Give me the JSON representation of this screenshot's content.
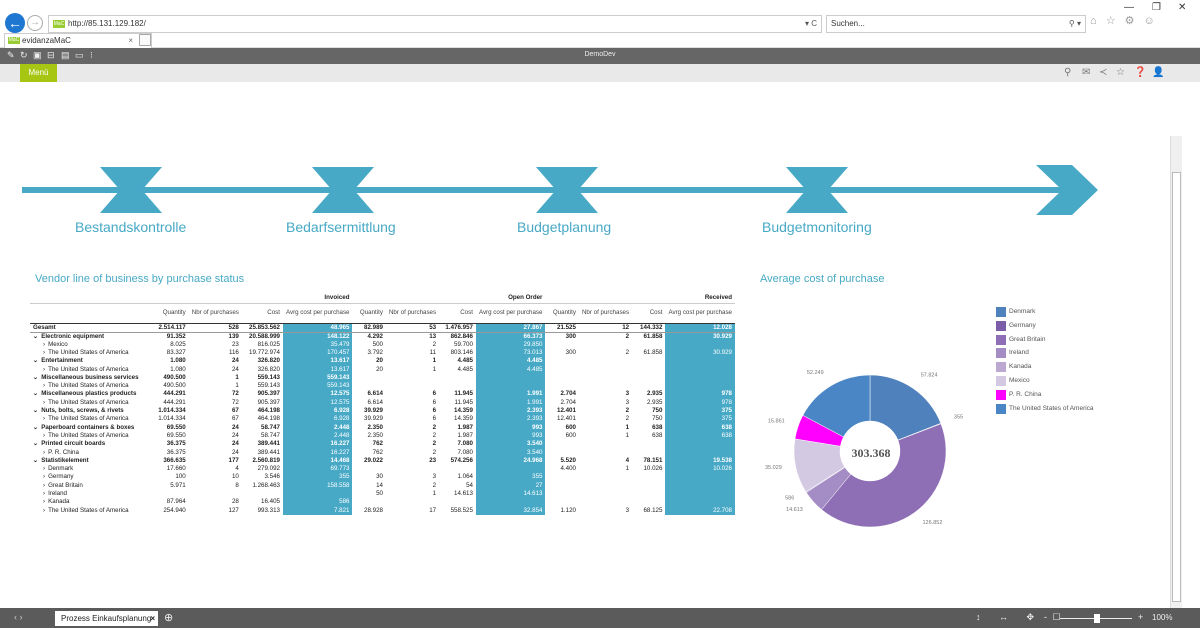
{
  "browser": {
    "address": "http://85.131.129.182/",
    "address_icons": "▾ C",
    "search_placeholder": "Suchen...",
    "tab_label": "evidanzaMaC",
    "favicon_text": "MaC",
    "right_icons": "⌂ ☆ ⚙ ☺",
    "search_icon": "⚲ ▾",
    "tab_close": "×"
  },
  "toolbar": {
    "title": "DemoDev"
  },
  "menu": {
    "label": "Menü"
  },
  "flow": {
    "steps": [
      "Bestandskontrolle",
      "Bedarfsermittlung",
      "Budgetplanung",
      "Budgetmonitoring"
    ]
  },
  "vendor_table": {
    "title": "Vendor line of business by purchase status",
    "groups": [
      "Invoiced",
      "Open Order",
      "Received"
    ],
    "columns": [
      "Quantity",
      "Nbr of purchases",
      "Cost",
      "Avrg cost per purchase"
    ],
    "rows": [
      {
        "label": "Gesamt",
        "level": 0,
        "bold": true,
        "arrow": "",
        "cells": [
          "2.514.117",
          "528",
          "25.853.562",
          "48.965",
          "82.989",
          "53",
          "1.476.957",
          "27.867",
          "21.525",
          "12",
          "144.332",
          "12.028"
        ]
      },
      {
        "label": "Electronic equipment",
        "level": 0,
        "bold": true,
        "arrow": "⌄",
        "cells": [
          "91.352",
          "139",
          "20.588.999",
          "148.122",
          "4.292",
          "13",
          "862.846",
          "66.373",
          "300",
          "2",
          "61.858",
          "30.929"
        ]
      },
      {
        "label": "Mexico",
        "level": 1,
        "bold": false,
        "arrow": "›",
        "cells": [
          "8.025",
          "23",
          "816.025",
          "35.479",
          "500",
          "2",
          "59.700",
          "29.850",
          "",
          "",
          "",
          ""
        ]
      },
      {
        "label": "The United States of America",
        "level": 1,
        "bold": false,
        "arrow": "›",
        "cells": [
          "83.327",
          "116",
          "19.772.974",
          "170.457",
          "3.792",
          "11",
          "803.146",
          "73.013",
          "300",
          "2",
          "61.858",
          "30.929"
        ]
      },
      {
        "label": "Entertainment",
        "level": 0,
        "bold": true,
        "arrow": "⌄",
        "cells": [
          "1.080",
          "24",
          "326.820",
          "13.617",
          "20",
          "1",
          "4.485",
          "4.485",
          "",
          "",
          "",
          ""
        ]
      },
      {
        "label": "The United States of America",
        "level": 1,
        "bold": false,
        "arrow": "›",
        "cells": [
          "1.080",
          "24",
          "326.820",
          "13.617",
          "20",
          "1",
          "4.485",
          "4.485",
          "",
          "",
          "",
          ""
        ]
      },
      {
        "label": "Miscellaneous business services",
        "level": 0,
        "bold": true,
        "arrow": "⌄",
        "cells": [
          "490.500",
          "1",
          "559.143",
          "559.143",
          "",
          "",
          "",
          "",
          "",
          "",
          "",
          ""
        ]
      },
      {
        "label": "The United States of America",
        "level": 1,
        "bold": false,
        "arrow": "›",
        "cells": [
          "490.500",
          "1",
          "559.143",
          "559.143",
          "",
          "",
          "",
          "",
          "",
          "",
          "",
          ""
        ]
      },
      {
        "label": "Miscellaneous plastics products",
        "level": 0,
        "bold": true,
        "arrow": "⌄",
        "cells": [
          "444.291",
          "72",
          "905.397",
          "12.575",
          "6.614",
          "6",
          "11.945",
          "1.991",
          "2.704",
          "3",
          "2.935",
          "978"
        ]
      },
      {
        "label": "The United States of America",
        "level": 1,
        "bold": false,
        "arrow": "›",
        "cells": [
          "444.291",
          "72",
          "905.397",
          "12.575",
          "6.614",
          "6",
          "11.945",
          "1.991",
          "2.704",
          "3",
          "2.935",
          "978"
        ]
      },
      {
        "label": "Nuts, bolts, screws, & rivets",
        "level": 0,
        "bold": true,
        "arrow": "⌄",
        "cells": [
          "1.014.334",
          "67",
          "464.198",
          "6.928",
          "39.929",
          "6",
          "14.359",
          "2.393",
          "12.401",
          "2",
          "750",
          "375"
        ]
      },
      {
        "label": "The United States of America",
        "level": 1,
        "bold": false,
        "arrow": "›",
        "cells": [
          "1.014.334",
          "67",
          "464.198",
          "6.928",
          "39.929",
          "6",
          "14.359",
          "2.393",
          "12.401",
          "2",
          "750",
          "375"
        ]
      },
      {
        "label": "Paperboard containers & boxes",
        "level": 0,
        "bold": true,
        "arrow": "⌄",
        "cells": [
          "69.550",
          "24",
          "58.747",
          "2.448",
          "2.350",
          "2",
          "1.987",
          "993",
          "600",
          "1",
          "638",
          "638"
        ]
      },
      {
        "label": "The United States of America",
        "level": 1,
        "bold": false,
        "arrow": "›",
        "cells": [
          "69.550",
          "24",
          "58.747",
          "2.448",
          "2.350",
          "2",
          "1.987",
          "993",
          "600",
          "1",
          "638",
          "638"
        ]
      },
      {
        "label": "Printed circuit boards",
        "level": 0,
        "bold": true,
        "arrow": "⌄",
        "cells": [
          "36.375",
          "24",
          "389.441",
          "16.227",
          "762",
          "2",
          "7.080",
          "3.540",
          "",
          "",
          "",
          ""
        ]
      },
      {
        "label": "P. R. China",
        "level": 1,
        "bold": false,
        "arrow": "›",
        "cells": [
          "36.375",
          "24",
          "389.441",
          "16.227",
          "762",
          "2",
          "7.080",
          "3.540",
          "",
          "",
          "",
          ""
        ]
      },
      {
        "label": "Statistikelement",
        "level": 0,
        "bold": true,
        "arrow": "⌄",
        "cells": [
          "366.635",
          "177",
          "2.560.819",
          "14.468",
          "29.022",
          "23",
          "574.256",
          "24.968",
          "5.520",
          "4",
          "78.151",
          "19.538"
        ]
      },
      {
        "label": "Denmark",
        "level": 1,
        "bold": false,
        "arrow": "›",
        "cells": [
          "17.660",
          "4",
          "279.092",
          "69.773",
          "",
          "",
          "",
          "",
          "4.400",
          "1",
          "10.026",
          "10.026"
        ]
      },
      {
        "label": "Germany",
        "level": 1,
        "bold": false,
        "arrow": "›",
        "cells": [
          "100",
          "10",
          "3.546",
          "355",
          "30",
          "3",
          "1.064",
          "355",
          "",
          "",
          "",
          ""
        ]
      },
      {
        "label": "Great Britain",
        "level": 1,
        "bold": false,
        "arrow": "›",
        "cells": [
          "5.971",
          "8",
          "1.268.463",
          "158.558",
          "14",
          "2",
          "54",
          "27",
          "",
          "",
          "",
          ""
        ]
      },
      {
        "label": "Ireland",
        "level": 1,
        "bold": false,
        "arrow": "›",
        "cells": [
          "",
          "",
          "",
          "",
          "50",
          "1",
          "14.613",
          "14.613",
          "",
          "",
          "",
          ""
        ]
      },
      {
        "label": "Kanada",
        "level": 1,
        "bold": false,
        "arrow": "›",
        "cells": [
          "87.964",
          "28",
          "16.405",
          "586",
          "",
          "",
          "",
          "",
          "",
          "",
          "",
          ""
        ]
      },
      {
        "label": "The United States of America",
        "level": 1,
        "bold": false,
        "arrow": "›",
        "cells": [
          "254.940",
          "127",
          "993.313",
          "7.821",
          "28.928",
          "17",
          "558.525",
          "32.854",
          "1.120",
          "3",
          "68.125",
          "22.708"
        ]
      }
    ]
  },
  "donut": {
    "title": "Average cost of purchase",
    "center_label": "303.368",
    "legend": [
      {
        "name": "Denmark",
        "color": "#4f81bd"
      },
      {
        "name": "Germany",
        "color": "#7b5ea7"
      },
      {
        "name": "Great Britain",
        "color": "#8e6fb5"
      },
      {
        "name": "Ireland",
        "color": "#a48cc4"
      },
      {
        "name": "Kanada",
        "color": "#bba9d2"
      },
      {
        "name": "Mexico",
        "color": "#d3c9e2"
      },
      {
        "name": "P. R. China",
        "color": "#ff00ff"
      },
      {
        "name": "The United States of America",
        "color": "#4a86c5"
      }
    ]
  },
  "chart_data": {
    "type": "pie",
    "title": "Average cost of purchase",
    "center_total": 303.368,
    "slices": [
      {
        "label": "Denmark",
        "value": 57824,
        "value_label": "57.824",
        "color": "#4f81bd"
      },
      {
        "label": "Germany",
        "value": 355,
        "value_label": "355",
        "color": "#7b5ea7"
      },
      {
        "label": "Great Britain",
        "value": 126852,
        "value_label": "126.852",
        "color": "#8e6fb5"
      },
      {
        "label": "Ireland",
        "value": 14613,
        "value_label": "14.613",
        "color": "#a48cc4"
      },
      {
        "label": "Kanada",
        "value": 586,
        "value_label": "586",
        "color": "#bba9d2"
      },
      {
        "label": "Mexico",
        "value": 35029,
        "value_label": "35.029",
        "color": "#d3c9e2"
      },
      {
        "label": "P. R. China",
        "value": 15861,
        "value_label": "15.861",
        "color": "#ff00ff"
      },
      {
        "label": "The United States of America",
        "value": 52249,
        "value_label": "52.249",
        "color": "#4a86c5"
      }
    ],
    "legend_position": "right"
  },
  "statusbar": {
    "sheet_tab": "Prozess Einkaufsplanung",
    "zoom": "100%",
    "nav_arrows": "‹ ›",
    "tools": "↕ ↔ ✥ ☐",
    "zoom_minus": "-",
    "zoom_plus": "+"
  }
}
